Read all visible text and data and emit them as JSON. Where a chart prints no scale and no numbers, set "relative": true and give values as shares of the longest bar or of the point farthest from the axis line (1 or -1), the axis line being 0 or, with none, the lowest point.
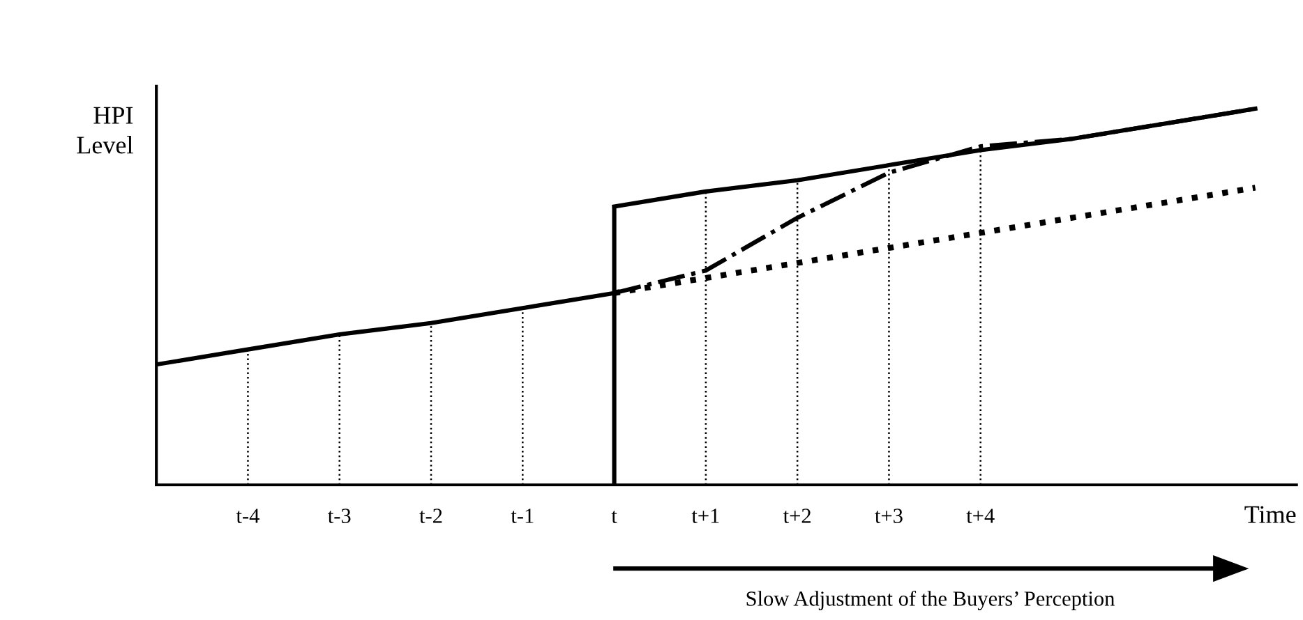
{
  "chart_data": {
    "type": "line",
    "relative": true,
    "ylabel": "HPI\nLevel",
    "xlabel": "Time",
    "categories": [
      null,
      "t-4",
      "t-3",
      "t-2",
      "t-1",
      "t",
      "t+1",
      "t+2",
      "t+3",
      "t+4",
      null,
      null,
      null
    ],
    "legend": false,
    "marker": "none",
    "ref_lines": [
      {
        "axis": "x",
        "value": "t",
        "color": "#000000",
        "line_style": "solid"
      },
      {
        "axis": "x",
        "value": "t-4",
        "color": "#000000",
        "line_style": "dotted"
      },
      {
        "axis": "x",
        "value": "t-3",
        "color": "#000000",
        "line_style": "dotted"
      },
      {
        "axis": "x",
        "value": "t-2",
        "color": "#000000",
        "line_style": "dotted"
      },
      {
        "axis": "x",
        "value": "t-1",
        "color": "#000000",
        "line_style": "dotted"
      },
      {
        "axis": "x",
        "value": "t+1",
        "color": "#000000",
        "line_style": "dotted"
      },
      {
        "axis": "x",
        "value": "t+2",
        "color": "#000000",
        "line_style": "dotted"
      },
      {
        "axis": "x",
        "value": "t+3",
        "color": "#000000",
        "line_style": "dotted"
      },
      {
        "axis": "x",
        "value": "t+4",
        "color": "#000000",
        "line_style": "dotted"
      }
    ],
    "series": [
      {
        "color": "#000000",
        "line_style": "solid",
        "values": [
          0.32,
          0.36,
          0.4,
          0.43,
          0.47,
          0.51,
          null,
          null,
          null,
          null,
          null,
          null,
          null
        ]
      },
      {
        "color": "#000000",
        "line_style": "solid",
        "values": [
          null,
          null,
          null,
          null,
          null,
          0.74,
          0.78,
          0.81,
          0.85,
          0.89,
          0.92,
          0.96,
          1.0
        ]
      },
      {
        "color": "#000000",
        "line_style": "dashdot",
        "values": [
          null,
          null,
          null,
          null,
          null,
          0.51,
          0.57,
          0.71,
          0.83,
          0.9,
          0.92,
          0.96,
          1.0
        ]
      },
      {
        "color": "#000000",
        "line_style": "dotted",
        "values": [
          null,
          null,
          null,
          null,
          null,
          0.51,
          0.55,
          0.59,
          0.63,
          0.67,
          0.71,
          0.75,
          0.79
        ]
      }
    ],
    "annotations": [
      "Slow Adjustment of the Buyers’ Perception"
    ]
  }
}
